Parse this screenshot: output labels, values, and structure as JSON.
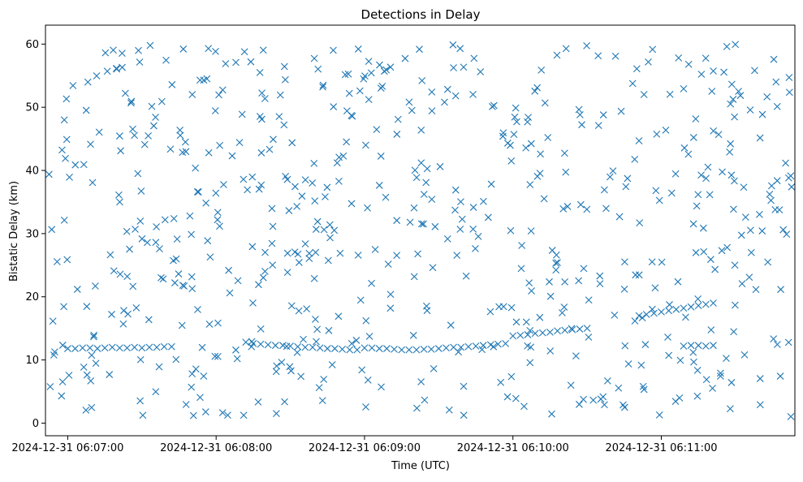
{
  "chart_data": {
    "type": "scatter",
    "title": "Detections in Delay",
    "xlabel": "Time (UTC)",
    "ylabel": "Bistatic Delay (km)",
    "marker": "x",
    "color": "#1f77b4",
    "xlim": [
      "2024-12-31 06:06:51",
      "2024-12-31 06:11:54"
    ],
    "ylim": [
      -2,
      63
    ],
    "x_ticks": [
      {
        "value": "2024-12-31 06:07:00",
        "label": "2024-12-31 06:07:00"
      },
      {
        "value": "2024-12-31 06:08:00",
        "label": "2024-12-31 06:08:00"
      },
      {
        "value": "2024-12-31 06:09:00",
        "label": "2024-12-31 06:09:00"
      },
      {
        "value": "2024-12-31 06:10:00",
        "label": "2024-12-31 06:10:00"
      },
      {
        "value": "2024-12-31 06:11:00",
        "label": "2024-12-31 06:11:00"
      }
    ],
    "y_ticks": [
      0,
      10,
      20,
      30,
      40,
      50,
      60
    ],
    "track_points": [
      [
        "2024-12-31 06:07:00",
        11.8
      ],
      [
        "2024-12-31 06:07:03",
        11.8
      ],
      [
        "2024-12-31 06:07:06",
        11.9
      ],
      [
        "2024-12-31 06:07:09",
        11.9
      ],
      [
        "2024-12-31 06:07:12",
        11.8
      ],
      [
        "2024-12-31 06:07:15",
        11.9
      ],
      [
        "2024-12-31 06:07:18",
        12.0
      ],
      [
        "2024-12-31 06:07:21",
        11.9
      ],
      [
        "2024-12-31 06:07:24",
        11.9
      ],
      [
        "2024-12-31 06:07:27",
        12.0
      ],
      [
        "2024-12-31 06:07:30",
        11.9
      ],
      [
        "2024-12-31 06:07:33",
        12.0
      ],
      [
        "2024-12-31 06:07:36",
        12.0
      ],
      [
        "2024-12-31 06:07:39",
        12.1
      ],
      [
        "2024-12-31 06:07:42",
        12.1
      ],
      [
        "2024-12-31 06:08:12",
        12.8
      ],
      [
        "2024-12-31 06:08:15",
        12.6
      ],
      [
        "2024-12-31 06:08:18",
        12.5
      ],
      [
        "2024-12-31 06:08:21",
        12.4
      ],
      [
        "2024-12-31 06:08:24",
        12.3
      ],
      [
        "2024-12-31 06:08:27",
        12.3
      ],
      [
        "2024-12-31 06:08:30",
        12.2
      ],
      [
        "2024-12-31 06:08:33",
        12.1
      ],
      [
        "2024-12-31 06:08:36",
        12.0
      ],
      [
        "2024-12-31 06:08:39",
        12.0
      ],
      [
        "2024-12-31 06:08:42",
        11.9
      ],
      [
        "2024-12-31 06:08:45",
        11.8
      ],
      [
        "2024-12-31 06:08:48",
        11.8
      ],
      [
        "2024-12-31 06:08:51",
        11.7
      ],
      [
        "2024-12-31 06:08:54",
        11.6
      ],
      [
        "2024-12-31 06:08:57",
        11.6
      ],
      [
        "2024-12-31 06:09:00",
        11.9
      ],
      [
        "2024-12-31 06:09:03",
        11.9
      ],
      [
        "2024-12-31 06:09:06",
        11.8
      ],
      [
        "2024-12-31 06:09:09",
        11.8
      ],
      [
        "2024-12-31 06:09:12",
        11.7
      ],
      [
        "2024-12-31 06:09:15",
        11.6
      ],
      [
        "2024-12-31 06:09:18",
        11.6
      ],
      [
        "2024-12-31 06:09:21",
        11.6
      ],
      [
        "2024-12-31 06:09:24",
        11.7
      ],
      [
        "2024-12-31 06:09:27",
        11.7
      ],
      [
        "2024-12-31 06:09:30",
        11.8
      ],
      [
        "2024-12-31 06:09:33",
        11.9
      ],
      [
        "2024-12-31 06:09:36",
        12.0
      ],
      [
        "2024-12-31 06:09:39",
        12.0
      ],
      [
        "2024-12-31 06:09:42",
        12.1
      ],
      [
        "2024-12-31 06:09:45",
        12.2
      ],
      [
        "2024-12-31 06:09:48",
        12.3
      ],
      [
        "2024-12-31 06:09:51",
        12.4
      ],
      [
        "2024-12-31 06:09:54",
        12.5
      ],
      [
        "2024-12-31 06:09:57",
        12.6
      ],
      [
        "2024-12-31 06:10:00",
        13.8
      ],
      [
        "2024-12-31 06:10:03",
        13.9
      ],
      [
        "2024-12-31 06:10:06",
        14.0
      ],
      [
        "2024-12-31 06:10:09",
        14.2
      ],
      [
        "2024-12-31 06:10:12",
        14.3
      ],
      [
        "2024-12-31 06:10:15",
        14.4
      ],
      [
        "2024-12-31 06:10:18",
        14.6
      ],
      [
        "2024-12-31 06:10:21",
        14.7
      ],
      [
        "2024-12-31 06:10:24",
        14.8
      ],
      [
        "2024-12-31 06:10:27",
        14.9
      ],
      [
        "2024-12-31 06:10:30",
        15.0
      ],
      [
        "2024-12-31 06:10:51",
        17.0
      ],
      [
        "2024-12-31 06:10:54",
        17.2
      ],
      [
        "2024-12-31 06:10:57",
        17.4
      ],
      [
        "2024-12-31 06:11:00",
        17.6
      ],
      [
        "2024-12-31 06:11:03",
        17.8
      ],
      [
        "2024-12-31 06:11:06",
        18.0
      ],
      [
        "2024-12-31 06:11:09",
        18.2
      ],
      [
        "2024-12-31 06:11:12",
        18.4
      ],
      [
        "2024-12-31 06:11:15",
        18.6
      ],
      [
        "2024-12-31 06:11:18",
        18.8
      ],
      [
        "2024-12-31 06:11:21",
        19.0
      ],
      [
        "2024-12-31 06:11:09",
        12.2
      ],
      [
        "2024-12-31 06:11:12",
        12.3
      ],
      [
        "2024-12-31 06:11:15",
        12.3
      ],
      [
        "2024-12-31 06:11:18",
        12.2
      ],
      [
        "2024-12-31 06:11:21",
        12.3
      ]
    ],
    "background_points": {
      "description_of_distribution": "",
      "count": 620,
      "time_range": [
        "2024-12-31 06:06:52",
        "2024-12-31 06:11:53"
      ],
      "delay_range": [
        1,
        60
      ]
    }
  }
}
